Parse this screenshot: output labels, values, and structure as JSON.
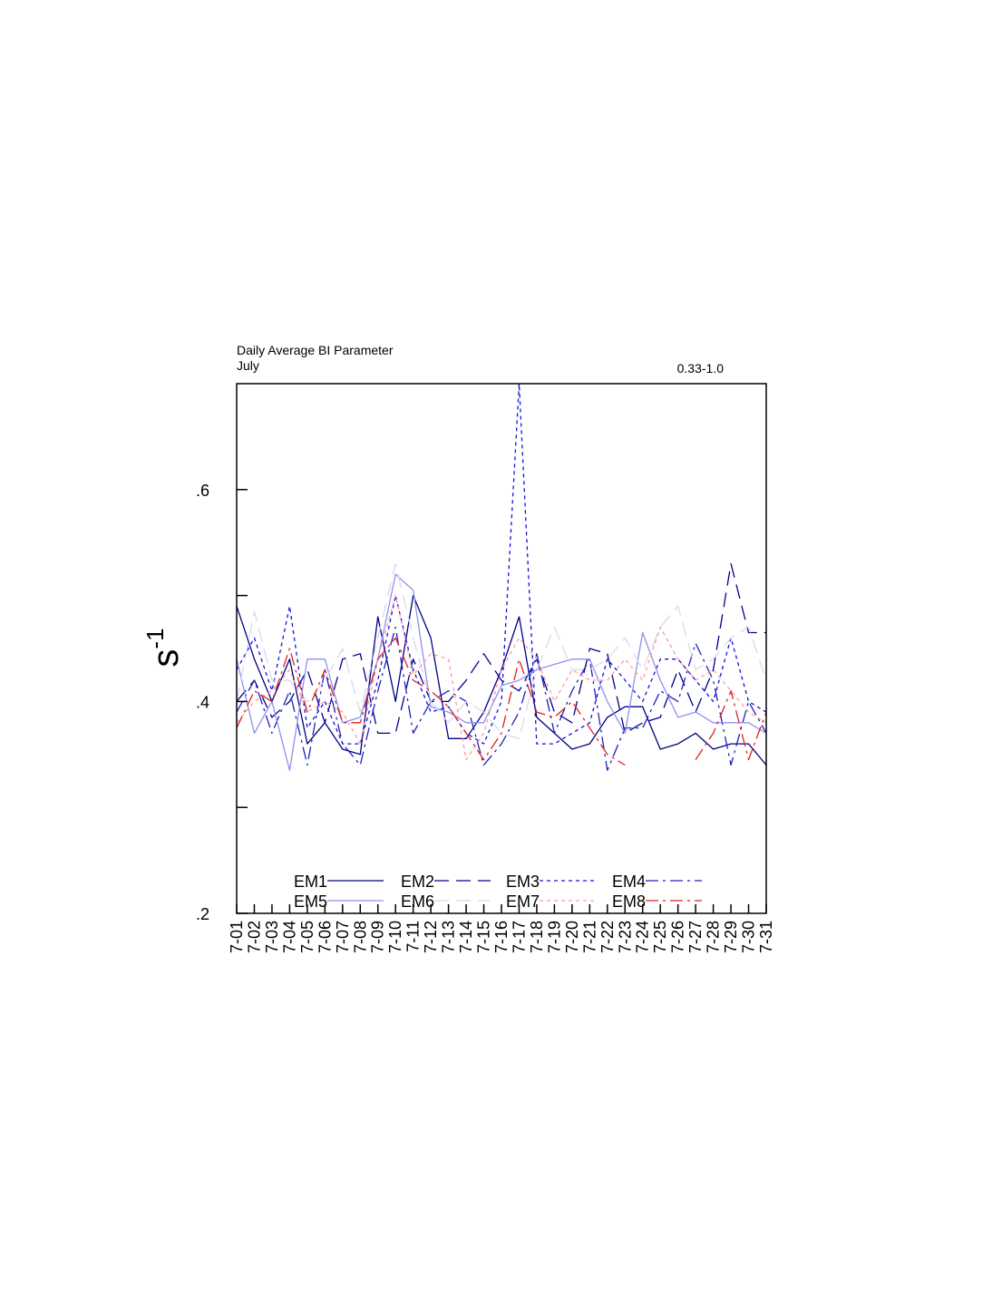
{
  "chart_data": {
    "type": "line",
    "title": "Daily Average BI Parameter",
    "subtitle": "July",
    "annotation": "0.33-1.0",
    "xlabel": "",
    "ylabel": "s",
    "ylabel_superscript": "-1",
    "ylim": [
      0.2,
      0.7
    ],
    "yticks": [
      0.2,
      0.3,
      0.4,
      0.5,
      0.6
    ],
    "ytick_labels": [
      ".2",
      "",
      ".4",
      "",
      ".6"
    ],
    "grid": false,
    "legend_position": "bottom-center",
    "categories": [
      "7-01",
      "7-02",
      "7-03",
      "7-04",
      "7-05",
      "7-06",
      "7-07",
      "7-08",
      "7-09",
      "7-10",
      "7-11",
      "7-12",
      "7-13",
      "7-14",
      "7-15",
      "7-16",
      "7-17",
      "7-18",
      "7-19",
      "7-20",
      "7-21",
      "7-22",
      "7-23",
      "7-24",
      "7-25",
      "7-26",
      "7-27",
      "7-28",
      "7-29",
      "7-30",
      "7-31"
    ],
    "series": [
      {
        "name": "EM1",
        "color": "#000080",
        "dash": "none",
        "values": [
          0.49,
          0.44,
          0.4,
          0.44,
          0.36,
          0.38,
          0.355,
          0.35,
          0.48,
          0.4,
          0.5,
          0.46,
          0.365,
          0.365,
          0.39,
          0.43,
          0.48,
          0.385,
          0.37,
          0.355,
          0.36,
          0.385,
          0.395,
          0.395,
          0.355,
          0.36,
          0.37,
          0.355,
          0.36,
          0.36,
          0.34
        ]
      },
      {
        "name": "EM2",
        "color": "#00008b",
        "dash": "16,8",
        "values": [
          0.4,
          0.42,
          0.385,
          0.4,
          0.43,
          0.38,
          0.44,
          0.445,
          0.37,
          0.37,
          0.44,
          0.4,
          0.4,
          0.42,
          0.445,
          0.42,
          0.41,
          0.44,
          0.39,
          0.38,
          0.45,
          0.445,
          0.37,
          0.38,
          0.385,
          0.43,
          0.39,
          0.43,
          0.53,
          0.465,
          0.465
        ]
      },
      {
        "name": "EM3",
        "color": "#1010e0",
        "dash": "4,4",
        "values": [
          0.43,
          0.46,
          0.41,
          0.49,
          0.375,
          0.4,
          0.36,
          0.36,
          0.42,
          0.5,
          0.43,
          0.39,
          0.395,
          0.37,
          0.36,
          0.4,
          0.7,
          0.36,
          0.36,
          0.37,
          0.38,
          0.44,
          0.42,
          0.4,
          0.44,
          0.44,
          0.42,
          0.4,
          0.46,
          0.4,
          0.39
        ]
      },
      {
        "name": "EM4",
        "color": "#2020c0",
        "dash": "14,5,3,5",
        "values": [
          0.39,
          0.42,
          0.37,
          0.41,
          0.34,
          0.43,
          0.36,
          0.34,
          0.41,
          0.47,
          0.37,
          0.4,
          0.41,
          0.4,
          0.34,
          0.36,
          0.39,
          0.445,
          0.37,
          0.41,
          0.44,
          0.335,
          0.375,
          0.375,
          0.41,
          0.4,
          0.455,
          0.42,
          0.34,
          0.4,
          0.37
        ]
      },
      {
        "name": "EM5",
        "color": "#9090ee",
        "dash": "none",
        "values": [
          0.44,
          0.37,
          0.4,
          0.335,
          0.44,
          0.44,
          0.38,
          0.385,
          0.44,
          0.52,
          0.505,
          0.395,
          0.39,
          0.38,
          0.38,
          0.415,
          0.42,
          0.43,
          0.435,
          0.44,
          0.44,
          0.4,
          0.37,
          0.465,
          0.42,
          0.385,
          0.39,
          0.38,
          0.38,
          0.38,
          0.37
        ]
      },
      {
        "name": "EM6",
        "color": "#d8d8f0",
        "dash": "16,8",
        "values": [
          0.4,
          0.485,
          0.42,
          0.42,
          0.4,
          0.42,
          0.45,
          0.39,
          0.46,
          0.53,
          0.46,
          0.4,
          0.38,
          0.4,
          0.39,
          0.37,
          0.365,
          0.43,
          0.47,
          0.43,
          0.43,
          0.44,
          0.46,
          0.43,
          0.47,
          0.49,
          0.43,
          0.44,
          0.46,
          0.47,
          0.42
        ]
      },
      {
        "name": "EM7",
        "color": "#ff9a9a",
        "dash": "4,4",
        "values": [
          0.38,
          0.4,
          0.41,
          0.43,
          0.39,
          0.4,
          0.39,
          0.36,
          0.44,
          0.5,
          0.425,
          0.445,
          0.44,
          0.345,
          0.37,
          0.43,
          0.46,
          0.44,
          0.4,
          0.43,
          0.42,
          0.42,
          0.44,
          0.42,
          0.47,
          0.44,
          0.42,
          0.43,
          0.41,
          0.39,
          0.38
        ]
      },
      {
        "name": "EM8",
        "color": "#e02020",
        "dash": "14,5,3,5",
        "values": [
          0.375,
          0.41,
          0.4,
          0.45,
          0.39,
          0.43,
          0.38,
          0.38,
          0.44,
          0.46,
          0.42,
          0.41,
          0.395,
          0.37,
          0.345,
          0.37,
          0.44,
          0.39,
          0.385,
          0.4,
          0.375,
          0.35,
          0.34,
          null,
          null,
          null,
          0.345,
          0.37,
          0.41,
          0.345,
          0.39
        ]
      }
    ]
  }
}
